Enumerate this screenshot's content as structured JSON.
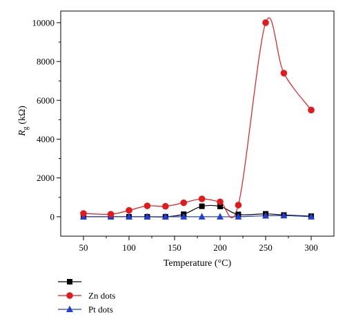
{
  "chart_data": {
    "type": "line",
    "x": [
      50,
      80,
      100,
      120,
      140,
      160,
      180,
      200,
      220,
      250,
      270,
      300
    ],
    "xlim": [
      25,
      325
    ],
    "ylim": [
      -1000,
      10600
    ],
    "xticks": [
      50,
      100,
      150,
      200,
      250,
      300
    ],
    "yticks": [
      0,
      2000,
      4000,
      6000,
      8000,
      10000
    ],
    "xlabel_main": "Temperature (",
    "xlabel_unit": "°C)",
    "ylabel_symbol": "R",
    "ylabel_sub": "g",
    "ylabel_unit": "(kΩ)",
    "grid": false,
    "legend_position": "bottom-left, below plot",
    "series": [
      {
        "name": "",
        "color": "#000000",
        "marker": "square",
        "values": [
          0,
          0,
          0,
          0,
          0,
          130,
          540,
          530,
          120,
          150,
          90,
          30
        ]
      },
      {
        "name": "Zn dots",
        "color": "#e31a1c",
        "marker": "circle",
        "values": [
          170,
          130,
          330,
          560,
          540,
          720,
          920,
          770,
          600,
          10000,
          7400,
          5500
        ]
      },
      {
        "name": "Pt dots",
        "color": "#1f3fd6",
        "marker": "triangle",
        "values": [
          0,
          0,
          0,
          0,
          0,
          0,
          0,
          0,
          0,
          50,
          60,
          0
        ]
      }
    ]
  }
}
